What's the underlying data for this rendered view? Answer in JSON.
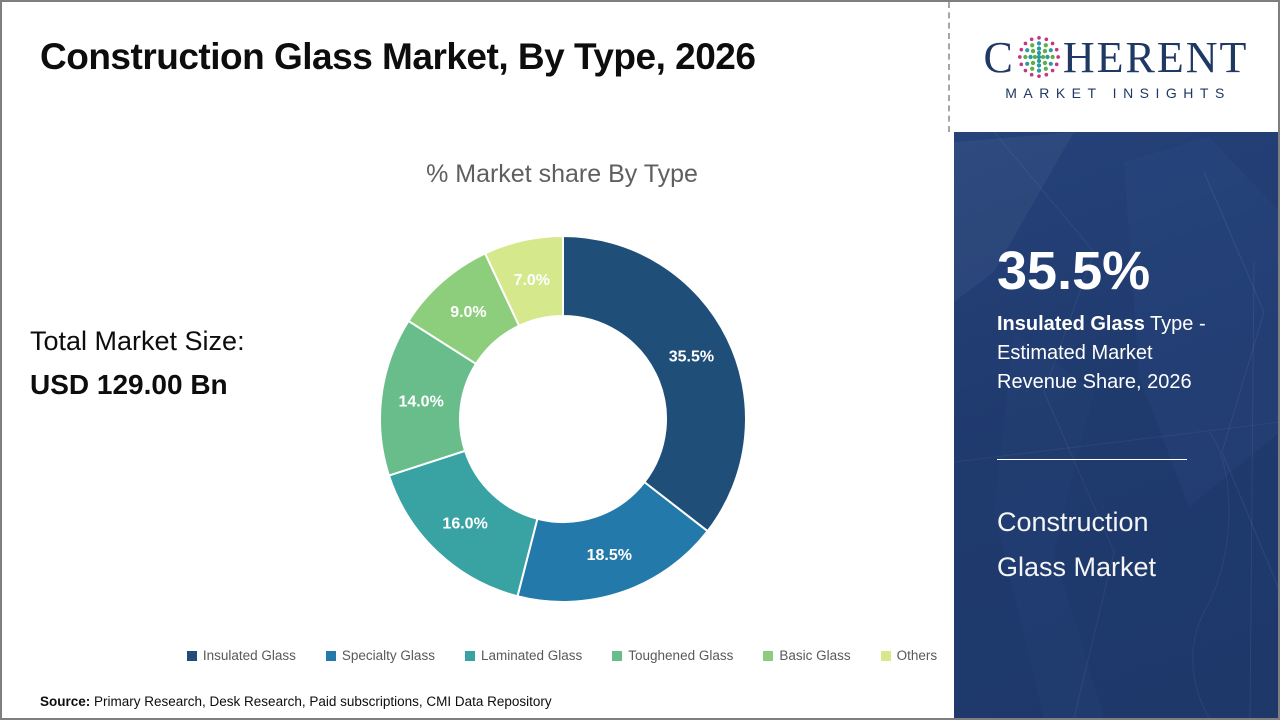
{
  "header": {
    "title": "Construction Glass Market, By Type, 2026"
  },
  "logo": {
    "word_start": "C",
    "word_end": "HERENT",
    "subtitle": "MARKET INSIGHTS",
    "brand_navy": "#1f3864",
    "dot_magenta": "#c2377f",
    "dot_teal": "#2c9aa0",
    "dot_green": "#5fae46"
  },
  "chart_data": {
    "type": "pie",
    "donut": true,
    "title": "% Market share By Type",
    "categories": [
      "Insulated Glass",
      "Specialty Glass",
      "Laminated Glass",
      "Toughened Glass",
      "Basic Glass",
      "Others"
    ],
    "values": [
      35.5,
      18.5,
      16.0,
      14.0,
      9.0,
      7.0
    ],
    "labels": [
      "35.5%",
      "18.5%",
      "16.0%",
      "14.0%",
      "9.0%",
      "7.0%"
    ],
    "colors": [
      "#1f4e79",
      "#2379a9",
      "#39a3a4",
      "#69bd8b",
      "#8dce7c",
      "#d5e88c"
    ],
    "start_angle_deg": 0,
    "direction": "clockwise",
    "legend_position": "bottom"
  },
  "market_size": {
    "label": "Total Market Size:",
    "value": "USD 129.00 Bn"
  },
  "sidebar": {
    "background": "#1f3a6d",
    "stat_value": "35.5%",
    "stat_bold": "Insulated Glass",
    "stat_rest": " Type - Estimated Market Revenue Share, 2026",
    "product_line1": "Construction",
    "product_line2": "Glass Market"
  },
  "source": {
    "label": "Source:",
    "text": " Primary Research, Desk Research, Paid subscriptions, CMI Data Repository"
  }
}
